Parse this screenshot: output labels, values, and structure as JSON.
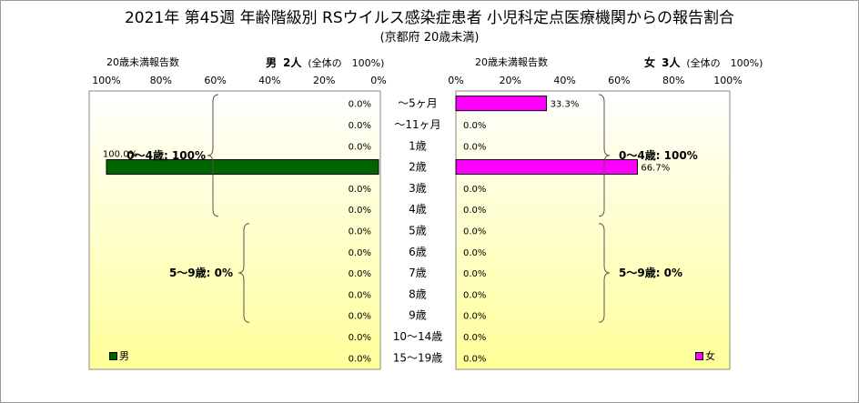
{
  "title": "2021年 第45週 年齢階級別 RSウイルス感染症患者 小児科定点医療機関からの報告割合",
  "subtitle": "(京都府 20歳未満)",
  "left_header": {
    "left_label": "20歳未満報告数",
    "sex": "男",
    "count": "2人",
    "note": "(全体の　100%)"
  },
  "right_header": {
    "left_label": "20歳未満報告数",
    "sex": "女",
    "count": "3人",
    "note": "(全体の　100%)"
  },
  "colors": {
    "male": "#006400",
    "female": "#ff00ff",
    "panel_top": "#ffffff",
    "panel_bottom": "#ffff99"
  },
  "chart_data": [
    {
      "type": "bar",
      "orientation": "horizontal",
      "direction": "right-to-left",
      "series": [
        {
          "name": "男",
          "values": [
            0,
            0,
            0,
            100,
            0,
            0,
            0,
            0,
            0,
            0,
            0,
            0,
            0
          ]
        }
      ],
      "categories": [
        "～5ヶ月",
        "～11ヶ月",
        "1歳",
        "2歳",
        "3歳",
        "4歳",
        "5歳",
        "6歳",
        "7歳",
        "8歳",
        "9歳",
        "10～14歳",
        "15～19歳"
      ],
      "value_labels": [
        "0.0%",
        "0.0%",
        "0.0%",
        "100.0%",
        "0.0%",
        "0.0%",
        "0.0%",
        "0.0%",
        "0.0%",
        "0.0%",
        "0.0%",
        "0.0%",
        "0.0%"
      ],
      "xlim": [
        0,
        100
      ],
      "ticks": [
        "100%",
        "80%",
        "60%",
        "40%",
        "20%",
        "0%"
      ],
      "annotations": [
        "0～4歳: 100%",
        "5～9歳: 0%"
      ],
      "legend": "bottom-left"
    },
    {
      "type": "bar",
      "orientation": "horizontal",
      "series": [
        {
          "name": "女",
          "values": [
            33.3,
            0,
            0,
            66.7,
            0,
            0,
            0,
            0,
            0,
            0,
            0,
            0,
            0
          ]
        }
      ],
      "categories": [
        "～5ヶ月",
        "～11ヶ月",
        "1歳",
        "2歳",
        "3歳",
        "4歳",
        "5歳",
        "6歳",
        "7歳",
        "8歳",
        "9歳",
        "10～14歳",
        "15～19歳"
      ],
      "value_labels": [
        "33.3%",
        "0.0%",
        "0.0%",
        "66.7%",
        "0.0%",
        "0.0%",
        "0.0%",
        "0.0%",
        "0.0%",
        "0.0%",
        "0.0%",
        "0.0%",
        "0.0%"
      ],
      "xlim": [
        0,
        100
      ],
      "ticks": [
        "0%",
        "20%",
        "40%",
        "60%",
        "80%",
        "100%"
      ],
      "annotations": [
        "0～4歳: 100%",
        "5～9歳: 0%"
      ],
      "legend": "bottom-right"
    }
  ]
}
